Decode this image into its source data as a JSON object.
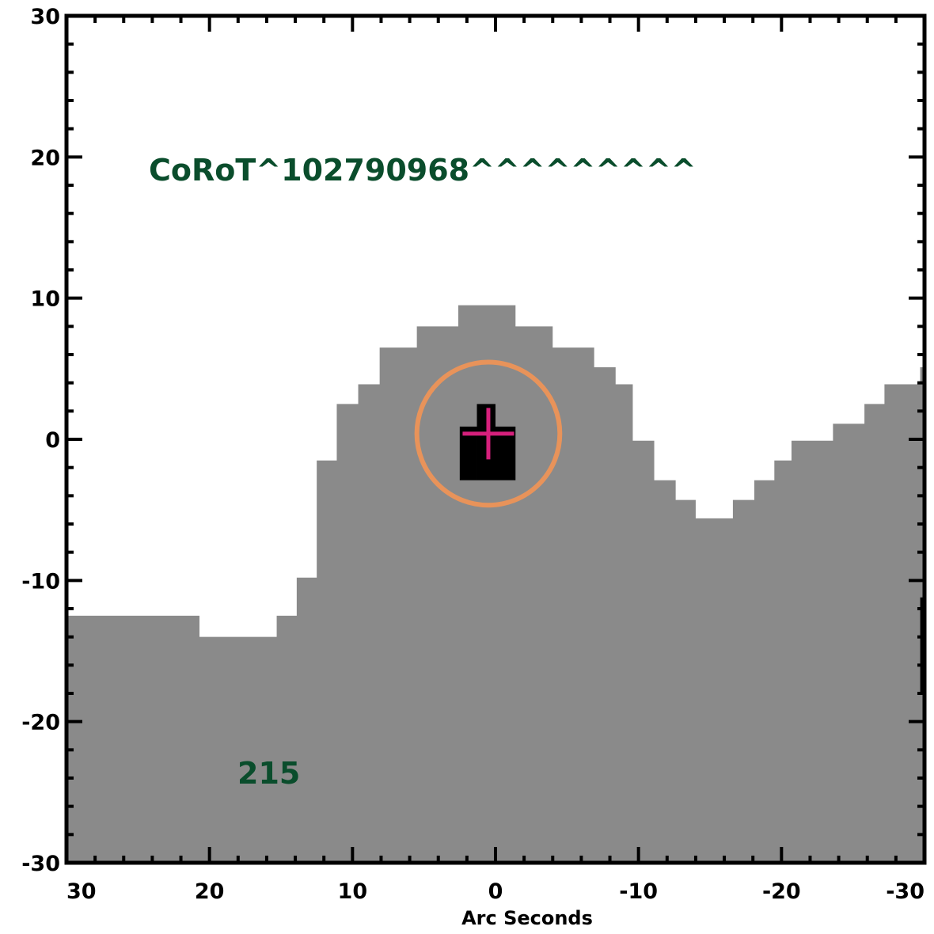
{
  "chart_data": {
    "type": "area",
    "xlabel": "Arc Seconds",
    "ylabel": "",
    "xlim": [
      30,
      -30
    ],
    "ylim": [
      -30,
      30
    ],
    "x_ticks": [
      {
        "value": 30,
        "label": "30"
      },
      {
        "value": 20,
        "label": "20"
      },
      {
        "value": 10,
        "label": "10"
      },
      {
        "value": 0,
        "label": "0"
      },
      {
        "value": -10,
        "label": "-10"
      },
      {
        "value": -20,
        "label": "-20"
      },
      {
        "value": -30,
        "label": "-30"
      }
    ],
    "y_ticks": [
      {
        "value": 30,
        "label": "30"
      },
      {
        "value": 20,
        "label": "20"
      },
      {
        "value": 10,
        "label": "10"
      },
      {
        "value": 0,
        "label": "0"
      },
      {
        "value": -10,
        "label": "-10"
      },
      {
        "value": -20,
        "label": "-20"
      },
      {
        "value": -30,
        "label": "-30"
      }
    ],
    "pixel_region": {
      "color": "#8a8a8a",
      "steps": [
        [
          30.0,
          -12.5
        ],
        [
          20.7,
          -14.0
        ],
        [
          15.3,
          -12.5
        ],
        [
          13.9,
          -9.8
        ],
        [
          12.5,
          -1.5
        ],
        [
          11.1,
          2.5
        ],
        [
          9.6,
          3.9
        ],
        [
          8.1,
          6.5
        ],
        [
          5.5,
          8.0
        ],
        [
          2.6,
          9.5
        ],
        [
          -1.4,
          8.0
        ],
        [
          -4.0,
          6.5
        ],
        [
          -6.9,
          5.1
        ],
        [
          -8.4,
          3.9
        ],
        [
          -9.6,
          -0.1
        ],
        [
          -11.1,
          -2.9
        ],
        [
          -12.6,
          -4.3
        ],
        [
          -14.0,
          -5.6
        ],
        [
          -16.6,
          -4.3
        ],
        [
          -18.1,
          -2.9
        ],
        [
          -19.5,
          -1.5
        ],
        [
          -20.7,
          -0.1
        ],
        [
          -23.6,
          1.1
        ],
        [
          -25.8,
          2.5
        ],
        [
          -27.2,
          3.9
        ],
        [
          -29.7,
          5.1
        ]
      ],
      "step_end_x": -30.0
    },
    "dark_pixels": {
      "color": "#000000",
      "rects": [
        [
          2.5,
          -2.9,
          1.3,
          0.9
        ],
        [
          1.3,
          -2.9,
          0.0,
          2.5
        ],
        [
          0.0,
          -2.9,
          -1.4,
          0.9
        ],
        [
          -29.7,
          -17.9,
          -30.0,
          -11.2
        ]
      ]
    },
    "target": {
      "name": "CoRoT^102790968^^^^^^^^^",
      "value_label": "215",
      "x": 0.5,
      "y": 0.4,
      "aperture_radius": 5.0,
      "marker_size": 1.8,
      "label_color": "#0a4d2c",
      "circle_color": "#e8935a",
      "cross_color": "#d6207c"
    }
  }
}
